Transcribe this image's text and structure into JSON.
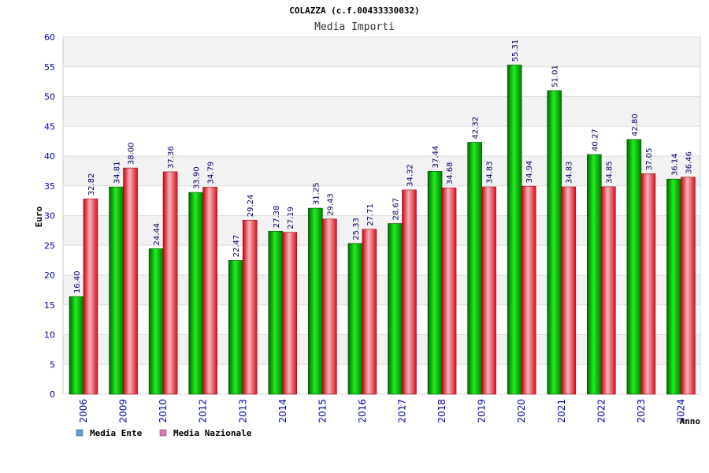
{
  "chart_data": {
    "type": "bar",
    "title": "COLAZZA (c.f.00433330032)",
    "subtitle": "Media Importi",
    "xlabel": "Anno",
    "ylabel": "Euro",
    "ylim": [
      0,
      60
    ],
    "yticks": [
      0,
      5,
      10,
      15,
      20,
      25,
      30,
      35,
      40,
      45,
      50,
      55,
      60
    ],
    "grid": true,
    "legend_position": "bottom-left",
    "categories": [
      "2006",
      "2009",
      "2010",
      "2012",
      "2013",
      "2014",
      "2015",
      "2016",
      "2017",
      "2018",
      "2019",
      "2020",
      "2021",
      "2022",
      "2023",
      "2024"
    ],
    "series": [
      {
        "name": "Media Ente",
        "color": "#00aa00",
        "legend_color": "#5b9bd5",
        "values": [
          16.4,
          34.81,
          24.44,
          33.9,
          22.47,
          27.38,
          31.25,
          25.33,
          28.67,
          37.44,
          42.32,
          55.31,
          51.01,
          40.27,
          42.8,
          36.14
        ],
        "labels": [
          "16.40",
          "34.81",
          "24.44",
          "33.90",
          "22.47",
          "27.38",
          "31.25",
          "25.33",
          "28.67",
          "37.44",
          "42.32",
          "55.31",
          "51.01",
          "40.27",
          "42.80",
          "36.14"
        ]
      },
      {
        "name": "Media Nazionale",
        "color": "#e8202a",
        "legend_color": "#d87bb0",
        "values": [
          32.82,
          38.0,
          37.36,
          34.79,
          29.24,
          27.19,
          29.43,
          27.71,
          34.32,
          34.68,
          34.83,
          34.94,
          34.83,
          34.85,
          37.05,
          36.46
        ],
        "labels": [
          "32.82",
          "38.00",
          "37.36",
          "34.79",
          "29.24",
          "27.19",
          "29.43",
          "27.71",
          "34.32",
          "34.68",
          "34.83",
          "34.94",
          "34.83",
          "34.85",
          "37.05",
          "36.46"
        ]
      }
    ]
  }
}
